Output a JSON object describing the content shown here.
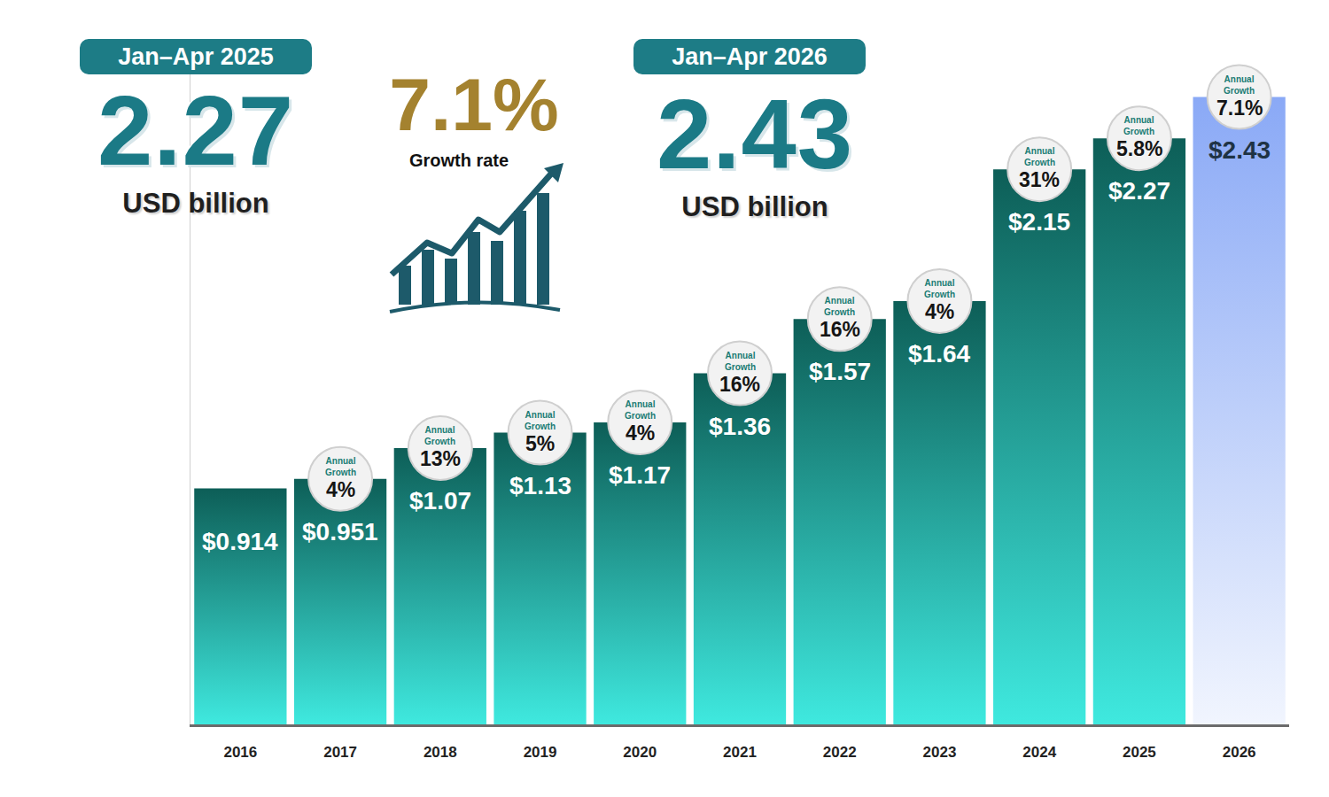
{
  "header": {
    "left": {
      "period": "Jan–Apr 2025",
      "value": "2.27",
      "unit": "USD billion"
    },
    "middle": {
      "value": "7.1%",
      "label": "Growth rate"
    },
    "right": {
      "period": "Jan–Apr 2026",
      "value": "2.43",
      "unit": "USD billion"
    }
  },
  "chart_data": {
    "type": "bar",
    "categories": [
      "2016",
      "2017",
      "2018",
      "2019",
      "2020",
      "2021",
      "2022",
      "2023",
      "2024",
      "2025",
      "2026"
    ],
    "values": [
      0.914,
      0.951,
      1.07,
      1.13,
      1.17,
      1.36,
      1.57,
      1.64,
      2.15,
      2.27,
      2.43
    ],
    "value_labels": [
      "$0.914",
      "$0.951",
      "$1.07",
      "$1.13",
      "$1.17",
      "$1.36",
      "$1.57",
      "$1.64",
      "$2.15",
      "$2.27",
      "$2.43"
    ],
    "colors": [
      "#0d5e57",
      "#0d5e57",
      "#0d5e57",
      "#0d5e57",
      "#0d5e57",
      "#0d5e57",
      "#0d5e57",
      "#0d5e57",
      "#0d5e57",
      "#0d5e57",
      "#8aa9f6"
    ],
    "data_labels": true,
    "tick_labels": "x",
    "grid": false,
    "ylim": [
      0,
      2.6
    ],
    "annotations": [
      {
        "category": "2017",
        "label": "Annual Growth",
        "text": "4%"
      },
      {
        "category": "2018",
        "label": "Annual Growth",
        "text": "13%"
      },
      {
        "category": "2019",
        "label": "Annual Growth",
        "text": "5%"
      },
      {
        "category": "2020",
        "label": "Annual Growth",
        "text": "4%"
      },
      {
        "category": "2021",
        "label": "Annual Growth",
        "text": "16%"
      },
      {
        "category": "2022",
        "label": "Annual Growth",
        "text": "16%"
      },
      {
        "category": "2023",
        "label": "Annual Growth",
        "text": "4%"
      },
      {
        "category": "2024",
        "label": "Annual Growth",
        "text": "31%"
      },
      {
        "category": "2025",
        "label": "Annual Growth",
        "text": "5.8%"
      },
      {
        "category": "2026",
        "label": "Annual Growth",
        "text": "7.1%"
      }
    ]
  }
}
